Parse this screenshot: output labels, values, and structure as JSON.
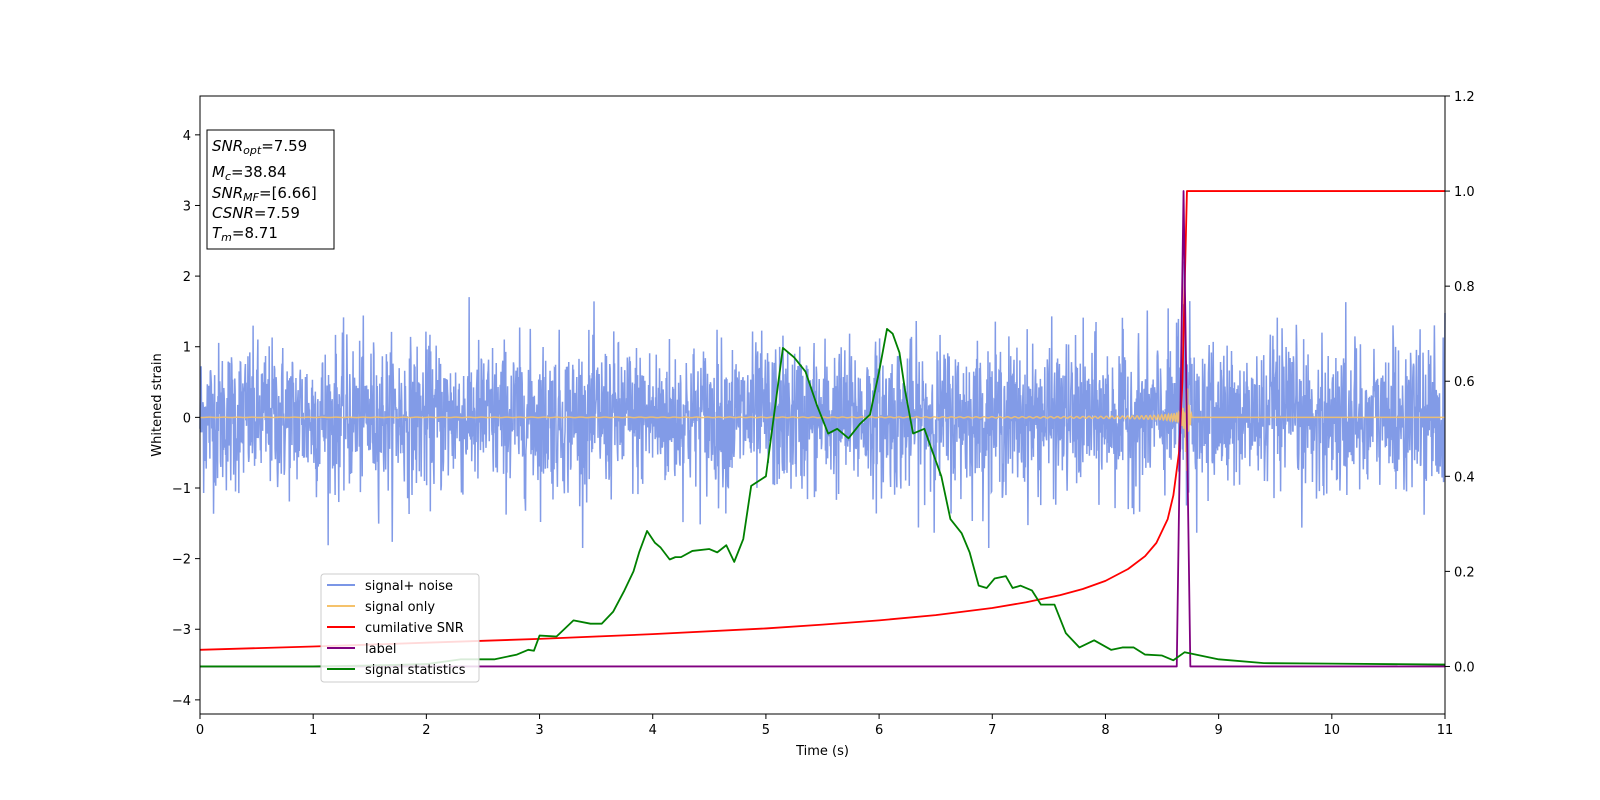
{
  "chart_data": {
    "type": "line",
    "xlabel": "Time (s)",
    "ylabel": "Whitened strain",
    "xlim": [
      0,
      11
    ],
    "ylim": [
      -4.2,
      4.55
    ],
    "ylim_right": [
      -0.1,
      1.2
    ],
    "x_ticks": [
      0,
      1,
      2,
      3,
      4,
      5,
      6,
      7,
      8,
      9,
      10,
      11
    ],
    "x_tick_labels": [
      "0",
      "1",
      "2",
      "3",
      "4",
      "5",
      "6",
      "7",
      "8",
      "9",
      "10",
      "11"
    ],
    "y_ticks": [
      -4,
      -3,
      -2,
      -1,
      0,
      1,
      2,
      3,
      4
    ],
    "y_tick_labels": [
      "−4",
      "−3",
      "−2",
      "−1",
      "0",
      "1",
      "2",
      "3",
      "4"
    ],
    "y_right_ticks": [
      0.0,
      0.2,
      0.4,
      0.6,
      0.8,
      1.0,
      1.2
    ],
    "y_right_tick_labels": [
      "0.0",
      "0.2",
      "0.4",
      "0.6",
      "0.8",
      "1.0",
      "1.2"
    ],
    "grid": false,
    "legend_position": "lower-left",
    "info_box": {
      "snr_opt_main": "SNR",
      "snr_opt_sub": "opt",
      "snr_opt_value": "=7.59",
      "mc_main": "M",
      "mc_sub": "c",
      "mc_value": "=38.84",
      "snr_mf_main": "SNR",
      "snr_mf_sub": "MF",
      "snr_mf_value": "=[6.66]",
      "csnr_main": "CSNR",
      "csnr_value": "=7.59",
      "tm_main": "T",
      "tm_sub": "m",
      "tm_value": "=8.71"
    },
    "series": [
      {
        "name": "signal+ noise",
        "color": "#7b96e6",
        "axis": "left",
        "kind": "noise",
        "duration": 11,
        "baseline_amplitude": 1.5,
        "peak_max": 2.1,
        "trough_min": -1.85
      },
      {
        "name": "signal only",
        "color": "#f5c26b",
        "axis": "left",
        "kind": "chirp",
        "merger_time": 8.71,
        "max_amplitude": 1.2
      },
      {
        "name": "cumilative SNR",
        "color": "#ff0000",
        "axis": "right",
        "x": [
          0,
          1,
          2,
          3,
          4,
          5,
          5.5,
          6,
          6.5,
          7,
          7.3,
          7.6,
          7.8,
          8.0,
          8.2,
          8.35,
          8.45,
          8.55,
          8.6,
          8.65,
          8.68,
          8.7,
          8.72,
          11
        ],
        "y": [
          0.035,
          0.042,
          0.05,
          0.058,
          0.068,
          0.08,
          0.088,
          0.097,
          0.108,
          0.123,
          0.135,
          0.15,
          0.163,
          0.18,
          0.205,
          0.232,
          0.26,
          0.31,
          0.36,
          0.45,
          0.6,
          0.8,
          1.0,
          1.0
        ]
      },
      {
        "name": "label",
        "color": "#800080",
        "axis": "right",
        "x": [
          0,
          8.63,
          8.69,
          8.75,
          11
        ],
        "y": [
          0,
          0,
          1.0,
          0,
          0
        ]
      },
      {
        "name": "signal statistics",
        "color": "#008000",
        "axis": "right",
        "x": [
          0,
          0.5,
          1,
          1.5,
          2,
          2.3,
          2.6,
          2.8,
          2.9,
          2.95,
          3.0,
          3.15,
          3.3,
          3.45,
          3.55,
          3.65,
          3.75,
          3.83,
          3.88,
          3.95,
          4.02,
          4.07,
          4.15,
          4.2,
          4.25,
          4.35,
          4.5,
          4.57,
          4.65,
          4.72,
          4.8,
          4.87,
          5.0,
          5.1,
          5.15,
          5.25,
          5.35,
          5.45,
          5.55,
          5.63,
          5.73,
          5.83,
          5.92,
          6.0,
          6.07,
          6.12,
          6.18,
          6.23,
          6.3,
          6.4,
          6.55,
          6.63,
          6.73,
          6.8,
          6.88,
          6.95,
          7.02,
          7.12,
          7.18,
          7.25,
          7.35,
          7.43,
          7.55,
          7.65,
          7.77,
          7.9,
          8.05,
          8.15,
          8.25,
          8.35,
          8.5,
          8.6,
          8.7,
          8.8,
          9.0,
          9.4,
          10.0,
          11.0
        ],
        "y": [
          0.0,
          0.0,
          0.0,
          0.002,
          0.005,
          0.015,
          0.015,
          0.025,
          0.035,
          0.033,
          0.065,
          0.063,
          0.097,
          0.09,
          0.09,
          0.115,
          0.16,
          0.2,
          0.24,
          0.285,
          0.26,
          0.25,
          0.225,
          0.23,
          0.23,
          0.243,
          0.247,
          0.24,
          0.255,
          0.22,
          0.268,
          0.38,
          0.4,
          0.58,
          0.67,
          0.65,
          0.62,
          0.55,
          0.49,
          0.5,
          0.48,
          0.51,
          0.53,
          0.62,
          0.71,
          0.7,
          0.66,
          0.58,
          0.49,
          0.5,
          0.4,
          0.31,
          0.28,
          0.24,
          0.17,
          0.165,
          0.185,
          0.19,
          0.165,
          0.17,
          0.16,
          0.13,
          0.13,
          0.07,
          0.04,
          0.055,
          0.035,
          0.04,
          0.04,
          0.025,
          0.023,
          0.013,
          0.03,
          0.025,
          0.015,
          0.007,
          0.006,
          0.004
        ]
      }
    ]
  }
}
